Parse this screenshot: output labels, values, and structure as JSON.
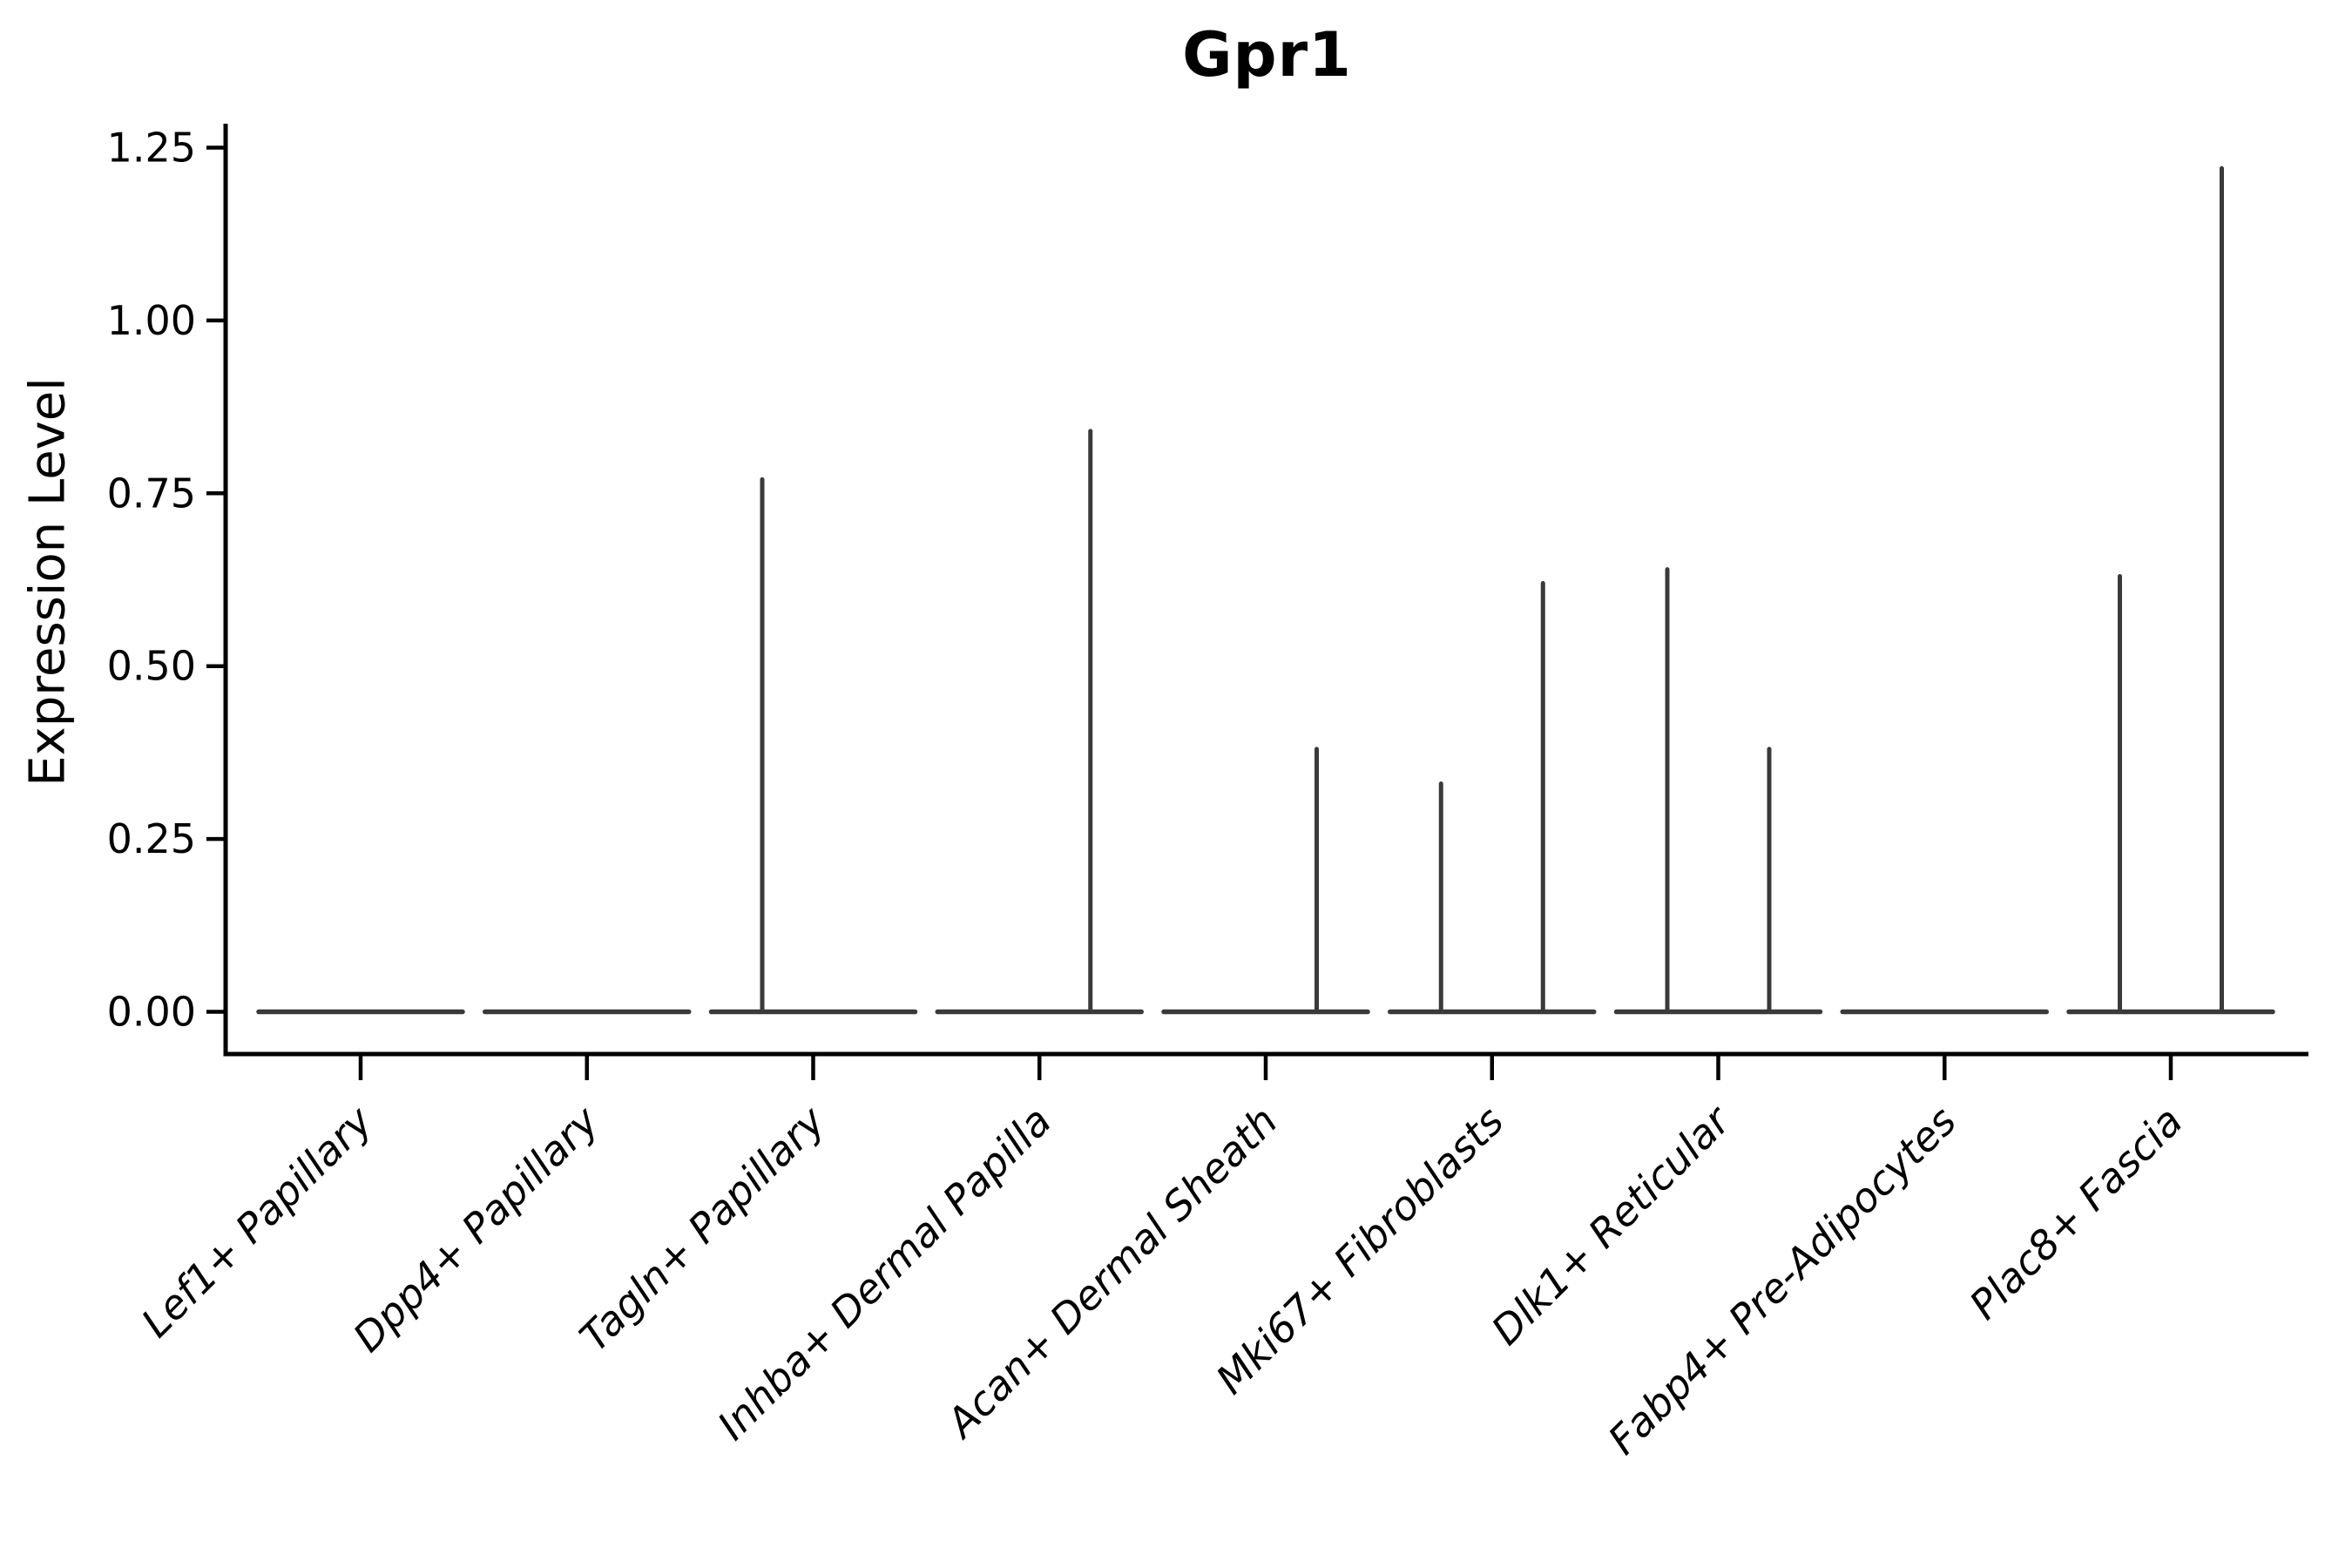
{
  "chart_data": {
    "type": "violin",
    "title": "Gpr1",
    "xlabel": "",
    "ylabel": "Expression Level",
    "categories": [
      "Lef1+ Papillary",
      "Dpp4+ Papillary",
      "Tagln+ Papillary",
      "Inhba+ Dermal Papilla",
      "Acan+ Dermal Sheath",
      "Mki67+ Fibroblasts",
      "Dlk1+ Reticular",
      "Fabp4+ Pre-Adipocytes",
      "Plac8+ Fascia"
    ],
    "series": [
      {
        "name": "violin_left",
        "description": "left dodged violin of each category; max expression spike height, violins otherwise flat at 0",
        "values": [
          0,
          0,
          0.77,
          0,
          0,
          0.33,
          0.64,
          0,
          0.63
        ]
      },
      {
        "name": "violin_right",
        "description": "right dodged violin of each category; max expression spike height, violins otherwise flat at 0",
        "values": [
          0,
          0,
          0,
          0.84,
          0.38,
          0.62,
          0.38,
          0,
          1.22
        ]
      }
    ],
    "yticks": [
      "0.00",
      "0.25",
      "0.50",
      "0.75",
      "1.00",
      "1.25"
    ],
    "ytick_values": [
      0,
      0.25,
      0.5,
      0.75,
      1.0,
      1.25
    ],
    "ylim": [
      0,
      1.25
    ],
    "grid": false,
    "legend": "none",
    "spines": [
      "left",
      "bottom"
    ],
    "x_tick_label_rotation_deg": 45,
    "x_tick_label_style": "italic",
    "colors": {
      "background": "#ffffff",
      "axis": "#000000",
      "text": "#000000",
      "violin_line": "#3a3a3a"
    }
  }
}
